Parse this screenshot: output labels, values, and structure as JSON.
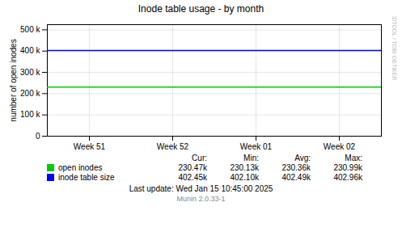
{
  "chart_data": {
    "type": "hline",
    "title": "Inode table usage - by month",
    "ylabel": "number of open inodes",
    "categories": [
      "Week 51",
      "Week 52",
      "Week 01",
      "Week 02"
    ],
    "ylim": [
      0,
      524288
    ],
    "yticks": [
      0,
      {
        "value": 100000,
        "label": "100 k"
      },
      {
        "value": 200000,
        "label": "200 k"
      },
      {
        "value": 300000,
        "label": "300 k"
      },
      {
        "value": 400000,
        "label": "400 k"
      },
      {
        "value": 500000,
        "label": "500 k"
      }
    ],
    "grid": true,
    "legend": "bottom",
    "series": [
      {
        "name": "open inodes",
        "color": "#00cc00",
        "value": 230470,
        "stats": {
          "values": [
            230470,
            230130,
            230360,
            230990
          ],
          "value_labels": [
            "230.47k",
            "230.13k",
            "230.36k",
            "230.99k"
          ]
        }
      },
      {
        "name": "inode table size",
        "color": "#0000ff",
        "value": 402450,
        "stats": {
          "values": [
            402450,
            402100,
            402490,
            402960
          ],
          "value_labels": [
            "402.45k",
            "402.10k",
            "402.49k",
            "402.96k"
          ]
        }
      }
    ],
    "stats_header": [
      "Cur:",
      "Min:",
      "Avg:",
      "Max:"
    ],
    "watermark": "RRDTOOL / TOBI OETIKER",
    "last_update": "Last update: Wed Jan 15 10:45:00 2025",
    "footer": "Munin 2.0.33-1"
  }
}
